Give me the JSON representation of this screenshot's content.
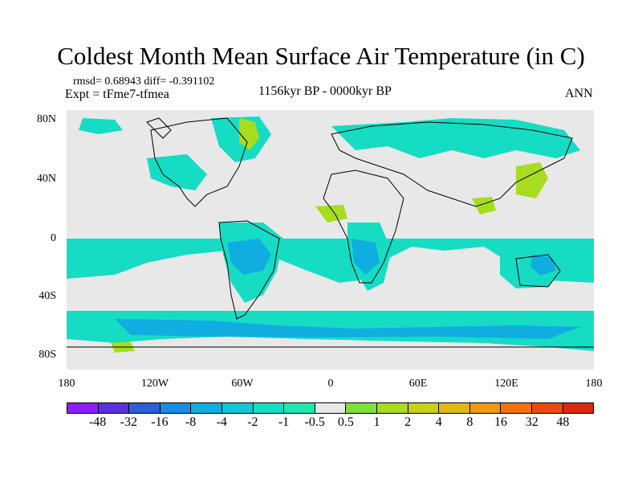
{
  "title": "Coldest Month Mean Surface Air Temperature (in C)",
  "stats": "rmsd= 0.68943 diff= -0.391102",
  "experiment": "Expt = tFme7-tfmea",
  "period": "1156kyr BP - 0000kyr BP",
  "season": "ANN",
  "lat_ticks": [
    "80N",
    "40N",
    "0",
    "40S",
    "80S"
  ],
  "lon_ticks": [
    "180",
    "120W",
    "60W",
    "0",
    "60E",
    "120E",
    "180"
  ],
  "colorbar": {
    "labels": [
      "-48",
      "-32",
      "-16",
      "-8",
      "-4",
      "-2",
      "-1",
      "-0.5",
      "0.5",
      "1",
      "2",
      "4",
      "8",
      "16",
      "32",
      "48"
    ],
    "colors": [
      "#8c1eff",
      "#5a2fe0",
      "#2b5fd8",
      "#1a8ce6",
      "#10aee0",
      "#12c6d6",
      "#16dcc4",
      "#20e6b0",
      "#e8e8e8",
      "#7ee03a",
      "#a8dc1e",
      "#c8d21a",
      "#e0b814",
      "#f09a10",
      "#f47010",
      "#ea4a10",
      "#dc2a10"
    ]
  },
  "map_colors": {
    "land_neutral": "#e8e8e8",
    "cool": "#16dcc4",
    "cooler": "#10aee0",
    "warm": "#a8dc1e",
    "outline": "#000000"
  }
}
